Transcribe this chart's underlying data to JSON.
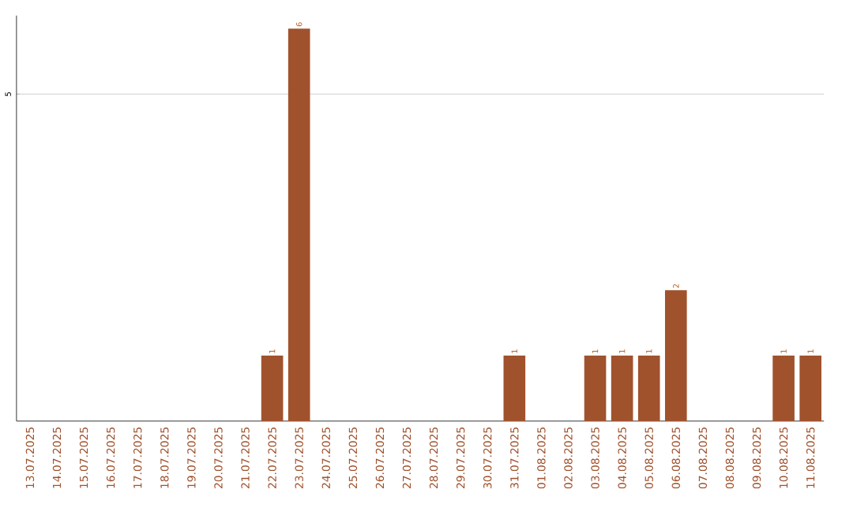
{
  "chart_data": {
    "type": "bar",
    "categories": [
      "13.07.2025",
      "14.07.2025",
      "15.07.2025",
      "16.07.2025",
      "17.07.2025",
      "18.07.2025",
      "19.07.2025",
      "20.07.2025",
      "21.07.2025",
      "22.07.2025",
      "23.07.2025",
      "24.07.2025",
      "25.07.2025",
      "26.07.2025",
      "27.07.2025",
      "28.07.2025",
      "29.07.2025",
      "30.07.2025",
      "31.07.2025",
      "01.08.2025",
      "02.08.2025",
      "03.08.2025",
      "04.08.2025",
      "05.08.2025",
      "06.08.2025",
      "07.08.2025",
      "08.08.2025",
      "09.08.2025",
      "10.08.2025",
      "11.08.2025"
    ],
    "values": [
      0,
      0,
      0,
      0,
      0,
      0,
      0,
      0,
      0,
      1,
      6,
      0,
      0,
      0,
      0,
      0,
      0,
      0,
      1,
      0,
      0,
      1,
      1,
      1,
      2,
      0,
      0,
      0,
      1,
      1
    ],
    "value_labels": [
      null,
      null,
      null,
      null,
      null,
      null,
      null,
      null,
      null,
      "1",
      "6",
      null,
      null,
      null,
      null,
      null,
      null,
      null,
      "1",
      null,
      null,
      "1",
      "1",
      "1",
      "2",
      null,
      null,
      null,
      "1",
      "1"
    ],
    "color": "#a0522d",
    "ylim": [
      0,
      6.2
    ],
    "yticks": [
      5
    ],
    "grid": "y"
  }
}
